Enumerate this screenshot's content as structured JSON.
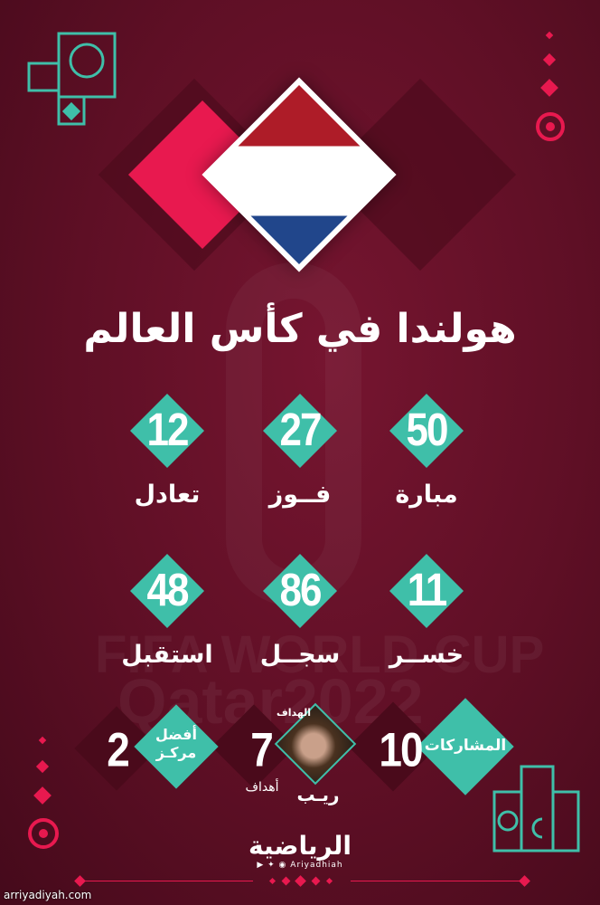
{
  "title": "هولندا في كأس العالم",
  "watermark": {
    "line1": "FIFA WORLD CUP",
    "line2": "Qatar2022"
  },
  "stats": [
    {
      "value": "50",
      "label": "مبارة"
    },
    {
      "value": "27",
      "label": "فــوز"
    },
    {
      "value": "12",
      "label": "تعادل"
    },
    {
      "value": "11",
      "label": "خســر"
    },
    {
      "value": "86",
      "label": "سجــل"
    },
    {
      "value": "48",
      "label": "استقبل"
    }
  ],
  "bottom": {
    "participations": {
      "label": "المشاركات",
      "value": "10"
    },
    "top_scorer": {
      "caption": "الهداف",
      "name": "ريـب",
      "value": "7",
      "unit": "أهداف"
    },
    "best_position": {
      "label_line1": "أفضل",
      "label_line2": "مركـز",
      "value": "2"
    }
  },
  "footer": {
    "logo_text": "الرياضية",
    "handle": "Ariyadhiah",
    "site": "arriyadiyah.com"
  },
  "colors": {
    "teal": "#3fbfa9",
    "pink": "#e8194f",
    "background": "#5e0f25"
  }
}
